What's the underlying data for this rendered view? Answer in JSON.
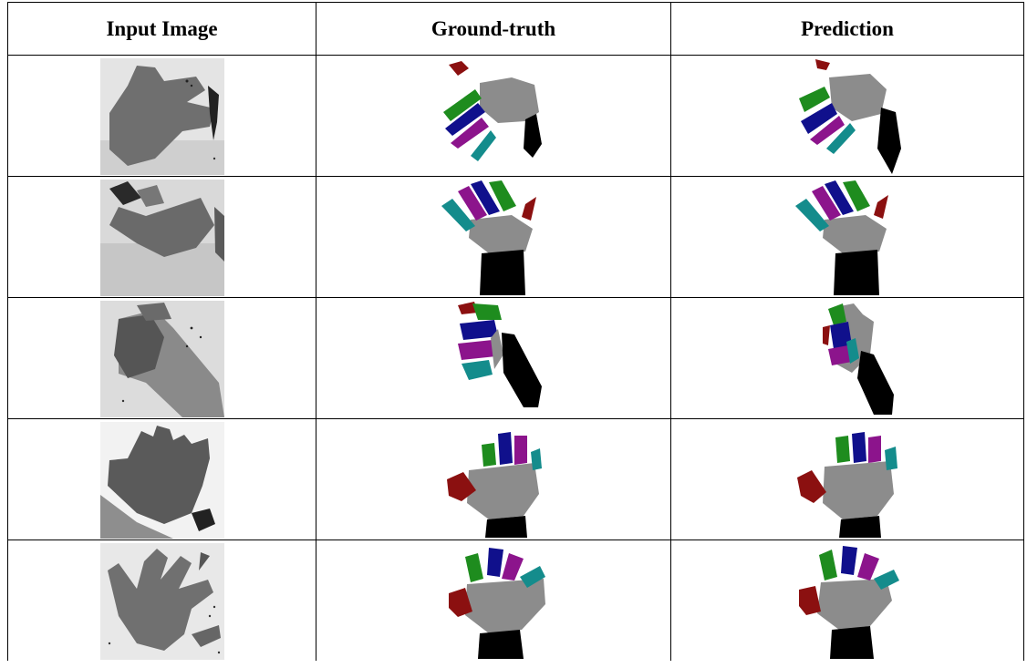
{
  "table": {
    "headers": [
      "Input Image",
      "Ground-truth",
      "Prediction"
    ],
    "rows": [
      {
        "pose": "pointing-sideways",
        "cells": [
          "depth-map",
          "segmentation-ground-truth",
          "segmentation-prediction"
        ]
      },
      {
        "pose": "open-hand-tilted",
        "cells": [
          "depth-map",
          "segmentation-ground-truth",
          "segmentation-prediction"
        ]
      },
      {
        "pose": "fist",
        "cells": [
          "depth-map",
          "segmentation-ground-truth",
          "segmentation-prediction"
        ]
      },
      {
        "pose": "open-hand-upright",
        "cells": [
          "depth-map",
          "segmentation-ground-truth",
          "segmentation-prediction"
        ]
      },
      {
        "pose": "open-hand-spread",
        "cells": [
          "depth-map",
          "segmentation-ground-truth",
          "segmentation-prediction"
        ]
      }
    ]
  },
  "colors": {
    "palm": "#8c8c8c",
    "thumb": "#8b1010",
    "index": "#1e8c1e",
    "middle": "#10108c",
    "ring": "#8c148c",
    "pinky": "#148c8c",
    "arm": "#000000",
    "depth_hand": "#6e6e6e",
    "depth_bg": "#d2d2d2"
  }
}
